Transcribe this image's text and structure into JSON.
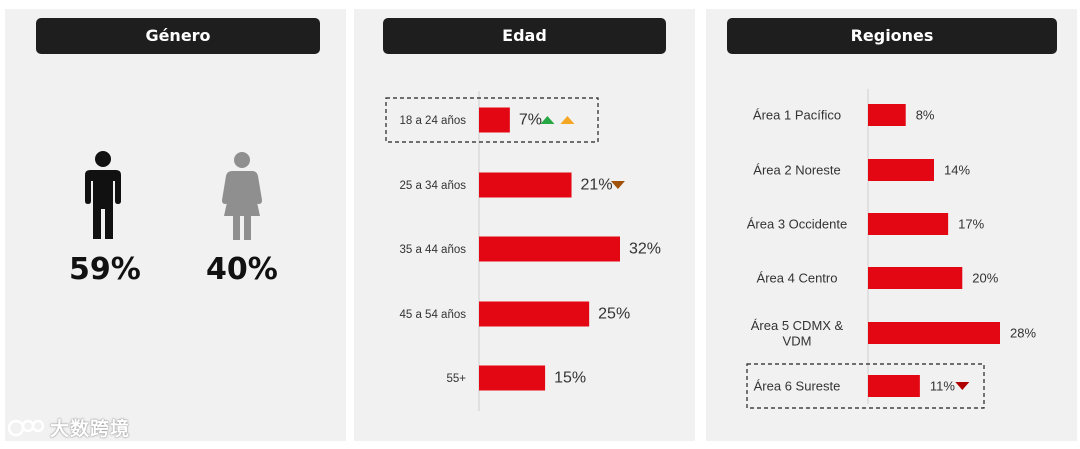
{
  "genero": {
    "title": "Género",
    "male_label": "59%",
    "female_label": "40%",
    "male_icon": "male-figure-icon",
    "female_icon": "female-figure-icon"
  },
  "edad": {
    "title": "Edad"
  },
  "regiones": {
    "title": "Regiones"
  },
  "colors": {
    "bar": "#e30613",
    "up_green": "#27a844",
    "up_orange": "#f5a623",
    "down_brown": "#a0520c",
    "down_red": "#b00000"
  },
  "watermark": "大数跨境",
  "chart_data": [
    {
      "type": "bar",
      "orientation": "horizontal",
      "title": "Edad",
      "categories": [
        "18 a 24 años",
        "25 a 34 años",
        "35 a 44 años",
        "45 a 54 años",
        "55+"
      ],
      "values": [
        7,
        21,
        32,
        25,
        15
      ],
      "labels": [
        "7%",
        "21%",
        "32%",
        "25%",
        "15%"
      ],
      "xlim": [
        0,
        32
      ],
      "highlighted": "18 a 24 años",
      "trend_markers": [
        {
          "category": "18 a 24 años",
          "markers": [
            "up-green",
            "up-orange"
          ]
        },
        {
          "category": "25 a 34 años",
          "markers": [
            "down-brown"
          ]
        }
      ]
    },
    {
      "type": "bar",
      "orientation": "horizontal",
      "title": "Regiones",
      "categories": [
        "Área 1 Pacífico",
        "Área 2 Noreste",
        "Área 3 Occidente",
        "Área 4 Centro",
        "Área 5 CDMX & VDM",
        "Área 6 Sureste"
      ],
      "category_lines": [
        [
          "Área 1 Pacífico"
        ],
        [
          "Área 2 Noreste"
        ],
        [
          "Área 3 Occidente"
        ],
        [
          "Área 4 Centro"
        ],
        [
          "Área 5 CDMX &",
          "VDM"
        ],
        [
          "Área 6 Sureste"
        ]
      ],
      "values": [
        8,
        14,
        17,
        20,
        28,
        11
      ],
      "labels": [
        "8%",
        "14%",
        "17%",
        "20%",
        "28%",
        "11%"
      ],
      "xlim": [
        0,
        28
      ],
      "highlighted": "Área 6 Sureste",
      "trend_markers": [
        {
          "category": "Área 6 Sureste",
          "markers": [
            "down-red"
          ]
        }
      ]
    }
  ]
}
